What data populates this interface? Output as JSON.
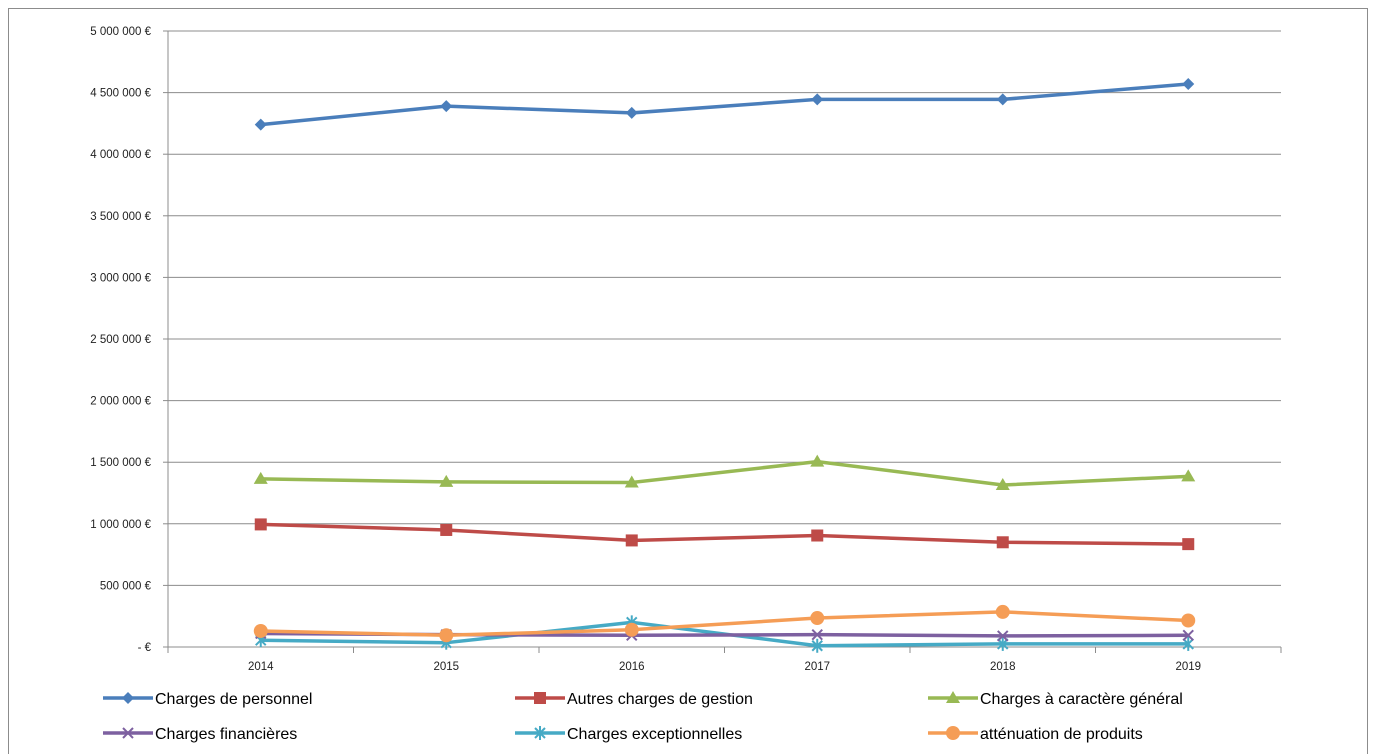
{
  "chart_data": {
    "type": "line",
    "title": "",
    "xlabel": "",
    "ylabel": "",
    "categories": [
      "2014",
      "2015",
      "2016",
      "2017",
      "2018",
      "2019"
    ],
    "ylim": [
      0,
      5000000
    ],
    "yticks": [
      0,
      500000,
      1000000,
      1500000,
      2000000,
      2500000,
      3000000,
      3500000,
      4000000,
      4500000,
      5000000
    ],
    "ytick_labels": [
      "- €",
      "500 000 €",
      "1 000 000 €",
      "1 500 000 €",
      "2 000 000 €",
      "2 500 000 €",
      "3 000 000 €",
      "3 500 000 €",
      "4 000 000 €",
      "4 500 000 €",
      "5 000 000 €"
    ],
    "grid": true,
    "legend_position": "bottom",
    "series": [
      {
        "name": "Charges de personnel",
        "color": "#4A7EBB",
        "marker": "diamond",
        "values": [
          4240000,
          4390000,
          4335000,
          4445000,
          4445000,
          4570000
        ]
      },
      {
        "name": "Autres charges de gestion",
        "color": "#BE4B48",
        "marker": "square",
        "values": [
          995000,
          950000,
          865000,
          905000,
          850000,
          835000
        ]
      },
      {
        "name": "Charges à caractère général",
        "color": "#98B954",
        "marker": "triangle",
        "values": [
          1365000,
          1340000,
          1335000,
          1505000,
          1315000,
          1385000
        ]
      },
      {
        "name": "Charges financières",
        "color": "#7D60A0",
        "marker": "x",
        "values": [
          110000,
          100000,
          95000,
          100000,
          90000,
          95000
        ]
      },
      {
        "name": "Charges exceptionnelles",
        "color": "#46AAC5",
        "marker": "star",
        "values": [
          55000,
          35000,
          200000,
          10000,
          25000,
          25000
        ]
      },
      {
        "name": "atténuation de produits",
        "color": "#F59D56",
        "marker": "circle",
        "values": [
          130000,
          95000,
          140000,
          235000,
          285000,
          215000
        ]
      }
    ]
  }
}
